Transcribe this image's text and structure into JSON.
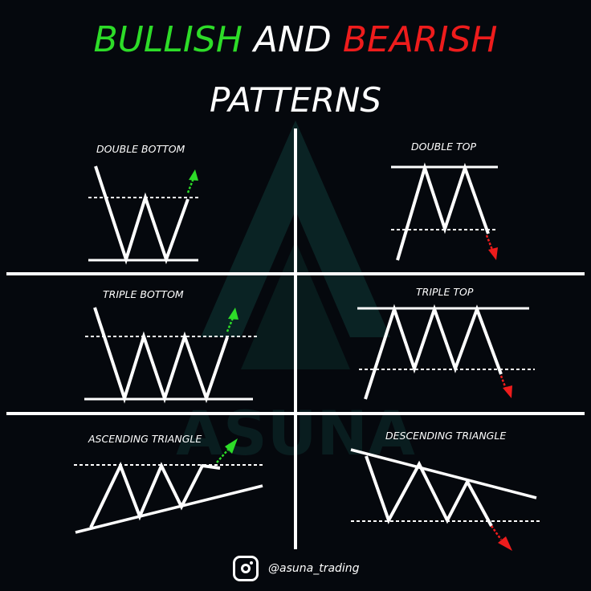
{
  "title": {
    "bullish": "BULLISH",
    "and": "AND",
    "bearish": "BEARISH",
    "line2": "PATTERNS"
  },
  "patterns": {
    "double_bottom": "DOUBLE BOTTOM",
    "double_top": "DOUBLE TOP",
    "triple_bottom": "TRIPLE BOTTOM",
    "triple_top": "TRIPLE TOP",
    "ascending_triangle": "ASCENDING TRIANGLE",
    "descending_triangle": "DESCENDING TRIANGLE"
  },
  "watermark": "ASUNA",
  "footer": {
    "handle": "@asuna_trading",
    "icon": "instagram-icon"
  },
  "colors": {
    "bullish": "#2ddc28",
    "bearish": "#ee1c1c",
    "line": "#ffffff",
    "background": "#05080d",
    "watermark": "#0f3a38"
  }
}
